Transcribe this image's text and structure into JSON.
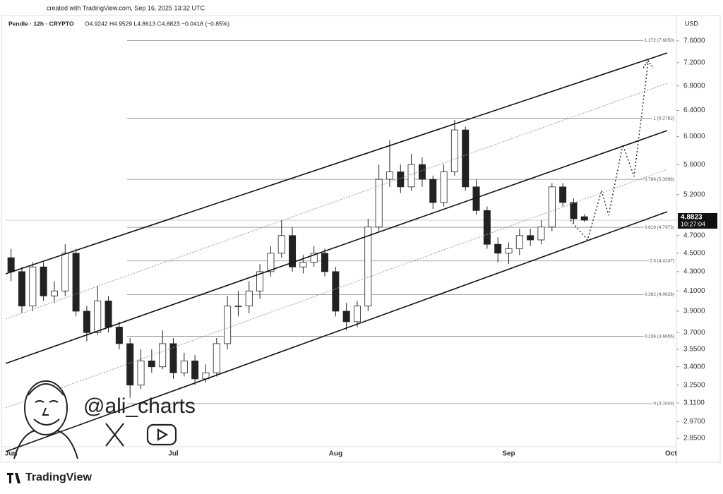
{
  "chart_data": {
    "type": "candlestick",
    "created_note": "created with TradingView.com, Sep 16, 2025 13:32 UTC",
    "symbol": "Pendle · 12h · CRYPTO",
    "ohlc_header": "O4.9242 H4.9529 L4.8613 C4.8823 −0.0418 (−0.85%)",
    "currency": "USD",
    "categories": [
      "Jun",
      null,
      null,
      null,
      null,
      null,
      null,
      null,
      null,
      null,
      null,
      null,
      null,
      null,
      null,
      "Jul",
      null,
      null,
      null,
      null,
      null,
      null,
      null,
      null,
      null,
      null,
      null,
      null,
      null,
      null,
      "Aug",
      null,
      null,
      null,
      null,
      null,
      null,
      null,
      null,
      null,
      null,
      null,
      null,
      null,
      null,
      null,
      "Sep",
      null,
      null,
      null,
      null,
      null,
      null,
      null,
      null,
      null,
      null,
      null,
      null,
      null,
      null,
      "Oct"
    ],
    "open": [
      4.45,
      4.3,
      3.95,
      4.35,
      4.05,
      4.1,
      4.5,
      3.9,
      3.7,
      4.0,
      3.75,
      3.6,
      3.25,
      3.45,
      3.4,
      3.6,
      3.35,
      3.45,
      3.3,
      3.35,
      3.6,
      3.95,
      3.95,
      4.1,
      4.3,
      4.5,
      4.7,
      4.35,
      4.4,
      4.5,
      4.3,
      3.9,
      3.8,
      3.95,
      4.8,
      5.4,
      5.5,
      5.3,
      5.6,
      5.4,
      5.1,
      5.5,
      6.1,
      5.3,
      5.0,
      4.6,
      4.5,
      4.55,
      4.7,
      4.65,
      4.8,
      5.3,
      5.1,
      4.9242,
      null,
      null,
      null,
      null,
      null,
      null,
      null,
      null
    ],
    "high": [
      4.55,
      4.35,
      4.4,
      4.4,
      4.2,
      4.6,
      4.55,
      3.95,
      4.15,
      4.05,
      3.8,
      3.65,
      3.55,
      3.55,
      3.72,
      3.65,
      3.52,
      3.5,
      3.42,
      3.65,
      4.05,
      4.1,
      4.2,
      4.38,
      4.58,
      4.88,
      4.8,
      4.48,
      4.58,
      4.55,
      4.35,
      3.98,
      4.0,
      4.9,
      5.6,
      5.95,
      5.6,
      5.75,
      5.7,
      5.45,
      5.6,
      6.25,
      6.15,
      5.4,
      5.05,
      4.68,
      4.62,
      4.78,
      4.78,
      4.88,
      5.35,
      5.35,
      5.15,
      4.9529,
      null,
      null,
      null,
      null,
      null,
      null,
      null,
      null
    ],
    "low": [
      4.2,
      3.88,
      3.9,
      4.0,
      3.98,
      4.05,
      3.85,
      3.62,
      3.68,
      3.7,
      3.55,
      3.15,
      3.22,
      3.35,
      3.38,
      3.3,
      3.32,
      3.25,
      3.27,
      3.32,
      3.55,
      3.85,
      3.88,
      4.02,
      4.25,
      4.45,
      4.3,
      4.28,
      4.35,
      4.25,
      3.85,
      3.72,
      3.75,
      3.9,
      4.75,
      5.3,
      5.22,
      5.25,
      5.3,
      5.02,
      5.05,
      5.45,
      5.25,
      4.95,
      4.55,
      4.4,
      4.38,
      4.48,
      4.58,
      4.6,
      4.75,
      5.05,
      4.85,
      4.8613,
      null,
      null,
      null,
      null,
      null,
      null,
      null,
      null
    ],
    "close": [
      4.3,
      3.95,
      4.35,
      4.05,
      4.1,
      4.5,
      3.9,
      3.7,
      4.0,
      3.75,
      3.6,
      3.25,
      3.45,
      3.4,
      3.6,
      3.35,
      3.45,
      3.3,
      3.35,
      3.6,
      3.95,
      3.95,
      4.1,
      4.3,
      4.5,
      4.7,
      4.35,
      4.4,
      4.5,
      4.3,
      3.9,
      3.8,
      3.95,
      4.8,
      5.4,
      5.5,
      5.3,
      5.6,
      5.4,
      5.1,
      5.5,
      6.1,
      5.3,
      5.0,
      4.6,
      4.5,
      4.55,
      4.7,
      4.65,
      4.8,
      5.3,
      5.1,
      4.9,
      4.8823,
      null,
      null,
      null,
      null,
      null,
      null,
      null,
      null
    ],
    "up_color": "#ffffff",
    "down_color": "#222222",
    "log": true,
    "grid": false,
    "ylim": [
      2.71,
      7.84
    ],
    "yticks": [
      {
        "value": 7.6,
        "label": "7.6000"
      },
      {
        "value": 7.2,
        "label": "7.2000"
      },
      {
        "value": 6.8,
        "label": "6.8000"
      },
      {
        "value": 6.4,
        "label": "6.4000"
      },
      {
        "value": 6.0,
        "label": "6.0000"
      },
      {
        "value": 5.6,
        "label": "5.6000"
      },
      {
        "value": 5.2,
        "label": "5.2000"
      },
      {
        "value": 4.7,
        "label": "4.7000"
      },
      {
        "value": 4.5,
        "label": "4.5000"
      },
      {
        "value": 4.3,
        "label": "4.3000"
      },
      {
        "value": 4.1,
        "label": "4.1000"
      },
      {
        "value": 3.9,
        "label": "3.9000"
      },
      {
        "value": 3.7,
        "label": "3.7000"
      },
      {
        "value": 3.55,
        "label": "3.5500"
      },
      {
        "value": 3.4,
        "label": "3.4000"
      },
      {
        "value": 3.25,
        "label": "3.2500"
      },
      {
        "value": 3.11,
        "label": "3.1100"
      },
      {
        "value": 2.97,
        "label": "2.9700"
      },
      {
        "value": 2.85,
        "label": "2.8500"
      }
    ],
    "fib_levels": [
      {
        "value": 7.605,
        "label": "1.272 (7.6050)"
      },
      {
        "value": 6.2782,
        "label": "1 (6.2782)"
      },
      {
        "value": 5.3998,
        "label": "0.786 (5.3998)"
      },
      {
        "value": 4.7973,
        "label": "0.618 (4.7973)"
      },
      {
        "value": 4.4147,
        "label": "0.5 (4.4147)"
      },
      {
        "value": 4.0626,
        "label": "0.382 (4.0626)"
      },
      {
        "value": 3.6656,
        "label": "0.236 (3.6656)"
      },
      {
        "value": 3.1043,
        "label": "0 (3.1043)"
      }
    ],
    "last_price": 4.8823,
    "countdown": "10:27:04",
    "watermark": "@ali_charts",
    "brand": "TradingView"
  }
}
